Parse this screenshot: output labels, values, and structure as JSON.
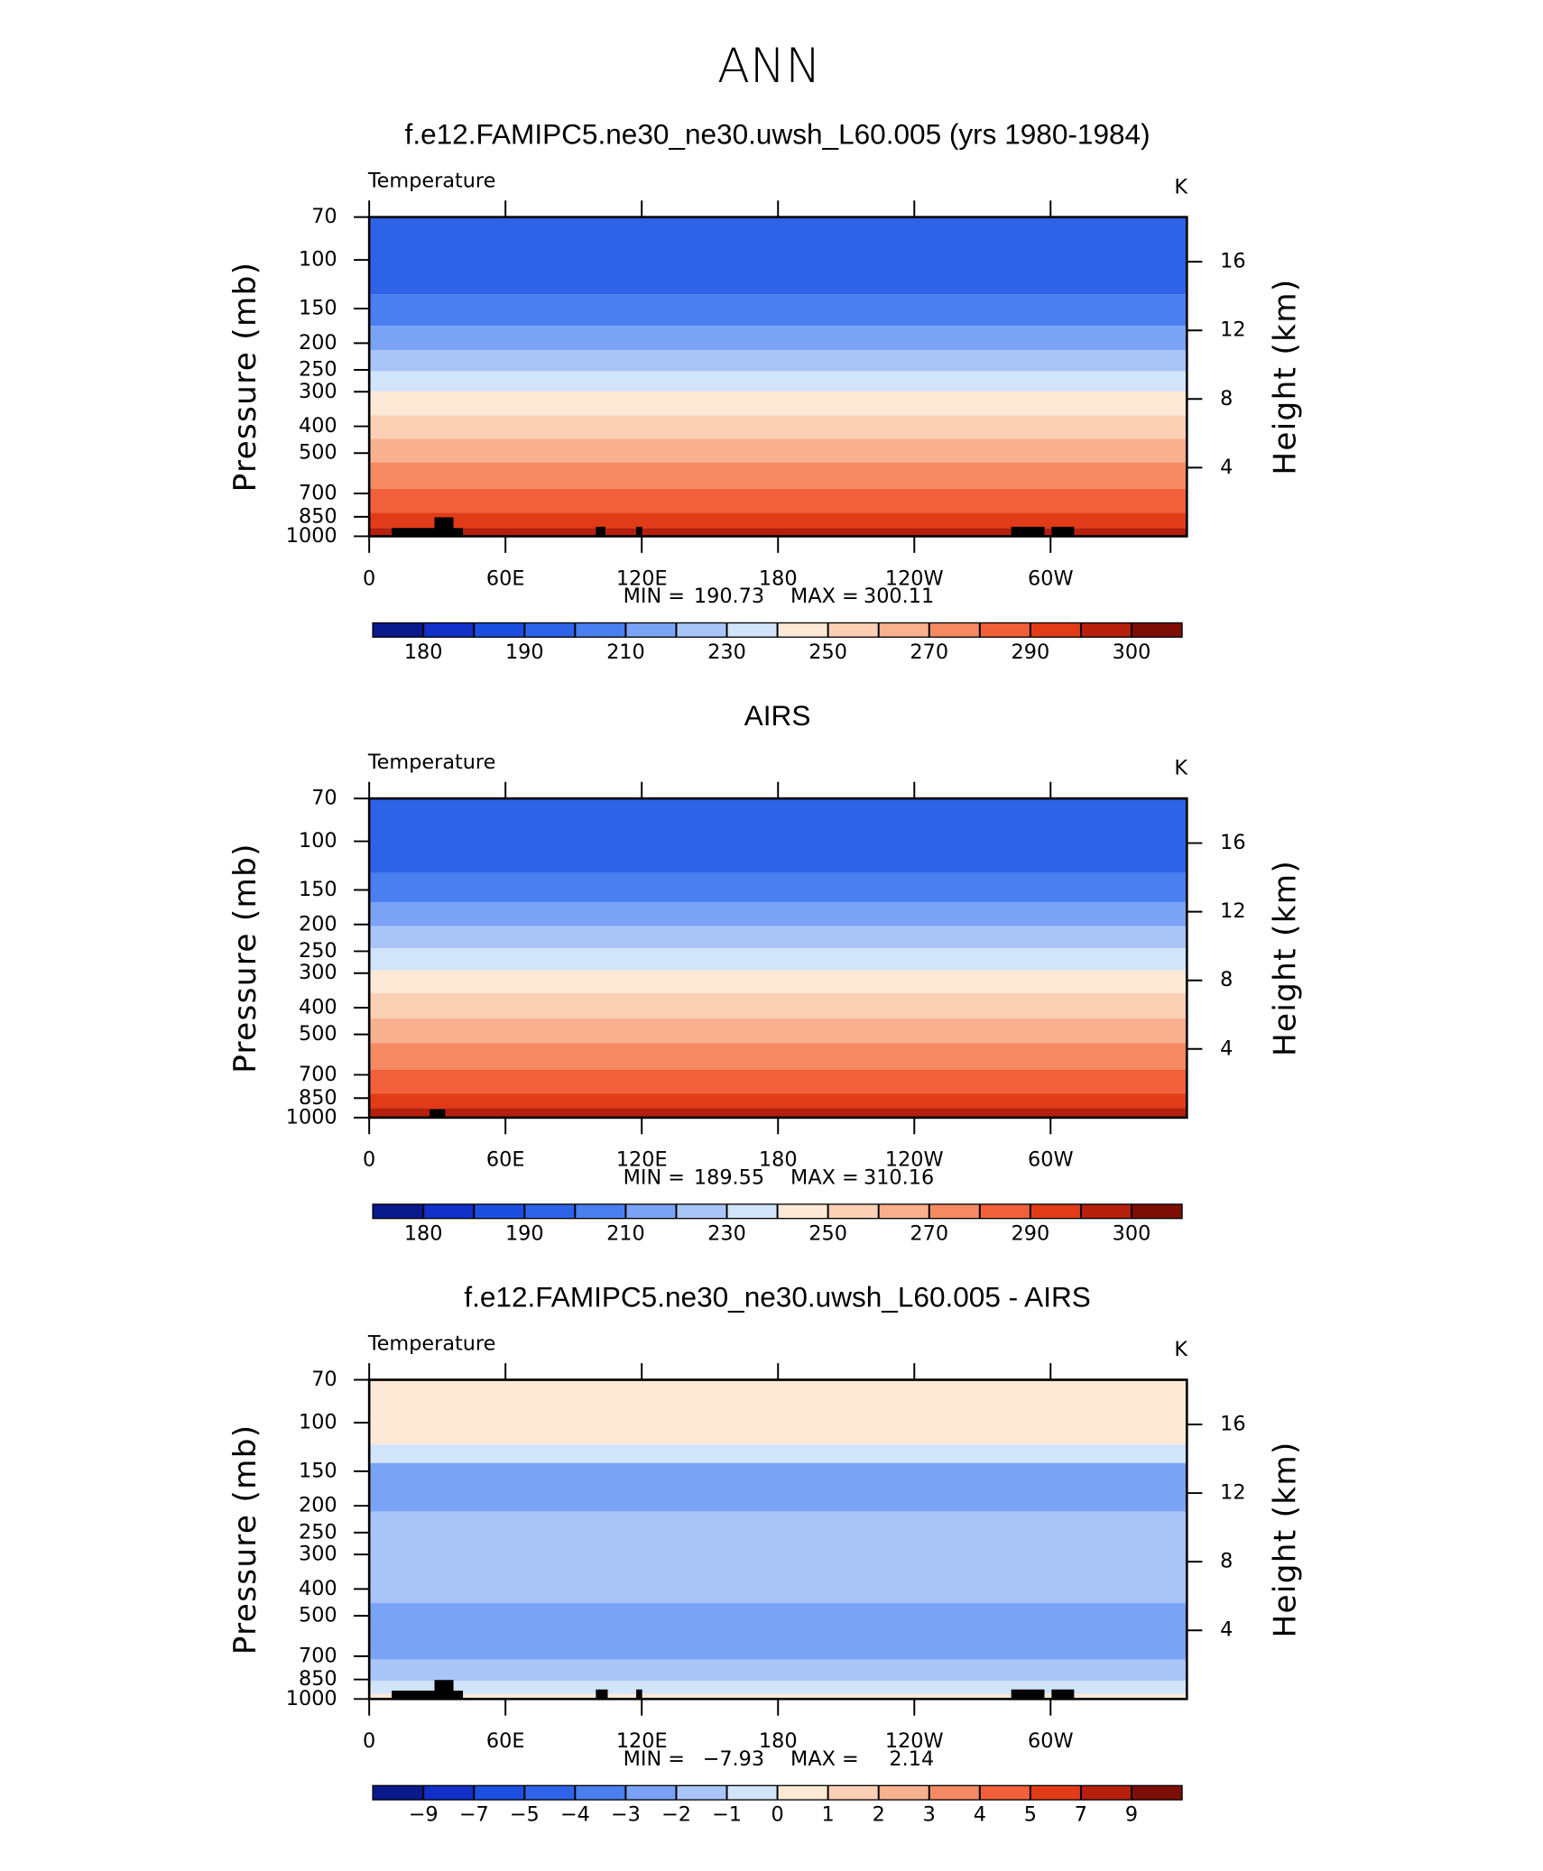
{
  "title": "ANN",
  "chart_data": [
    {
      "type": "contour",
      "title": "f.e12.FAMIPC5.ne30_ne30.uwsh_L60.005 (yrs 1980-1984)",
      "subtitle": "Temperature",
      "units": "K",
      "ylabel": "Pressure (mb)",
      "y2label": "Height (km)",
      "log_y": true,
      "xlim": [
        0,
        360
      ],
      "xticks": [
        0,
        {
          "value": 60,
          "label": "60E"
        },
        {
          "value": 120,
          "label": "120E"
        },
        180,
        {
          "value": 240,
          "label": "120W"
        },
        {
          "value": 300,
          "label": "60W"
        }
      ],
      "ylim": [
        1000,
        70
      ],
      "yticks": [
        70,
        100,
        150,
        200,
        250,
        300,
        400,
        500,
        700,
        850,
        1000
      ],
      "y2lim": [
        0,
        18.6
      ],
      "y2ticks": [
        4,
        8,
        12,
        16
      ],
      "levels": [
        180,
        185,
        190,
        200,
        210,
        220,
        230,
        240,
        250,
        260,
        270,
        280,
        290,
        295,
        300
      ],
      "colorbar_labels": [
        180,
        190,
        210,
        230,
        250,
        270,
        290,
        300
      ],
      "colors": [
        "#0a1a8c",
        "#1030c8",
        "#1c4fe0",
        "#2e63e8",
        "#4a7ff0",
        "#7aa3f5",
        "#a9c5f8",
        "#d2e4fa",
        "#fde9d6",
        "#fbd0b5",
        "#f8b08e",
        "#f58a62",
        "#f1603a",
        "#e23b17",
        "#b51f0c",
        "#7d0e06"
      ],
      "bands": [
        {
          "p_top": 70,
          "p_bottom": 133,
          "range": [
            190,
            200
          ]
        },
        {
          "p_top": 133,
          "p_bottom": 173,
          "range": [
            200,
            210
          ]
        },
        {
          "p_top": 173,
          "p_bottom": 212,
          "range": [
            210,
            220
          ]
        },
        {
          "p_top": 212,
          "p_bottom": 253,
          "range": [
            220,
            230
          ]
        },
        {
          "p_top": 253,
          "p_bottom": 299,
          "range": [
            230,
            240
          ]
        },
        {
          "p_top": 299,
          "p_bottom": 365,
          "range": [
            240,
            250
          ]
        },
        {
          "p_top": 365,
          "p_bottom": 444,
          "range": [
            250,
            260
          ]
        },
        {
          "p_top": 444,
          "p_bottom": 541,
          "range": [
            260,
            270
          ]
        },
        {
          "p_top": 541,
          "p_bottom": 673,
          "range": [
            270,
            280
          ]
        },
        {
          "p_top": 673,
          "p_bottom": 821,
          "range": [
            280,
            290
          ]
        },
        {
          "p_top": 821,
          "p_bottom": 933,
          "range": [
            290,
            295
          ]
        },
        {
          "p_top": 933,
          "p_bottom": 1000,
          "range": [
            295,
            300
          ]
        }
      ],
      "min_label": "MIN =",
      "min": 190.73,
      "max_label": "MAX =",
      "max": 300.11
    },
    {
      "type": "contour",
      "title": "AIRS",
      "subtitle": "Temperature",
      "units": "K",
      "ylabel": "Pressure (mb)",
      "y2label": "Height (km)",
      "log_y": true,
      "xlim": [
        0,
        360
      ],
      "xticks": [
        0,
        {
          "value": 60,
          "label": "60E"
        },
        {
          "value": 120,
          "label": "120E"
        },
        180,
        {
          "value": 240,
          "label": "120W"
        },
        {
          "value": 300,
          "label": "60W"
        }
      ],
      "ylim": [
        1000,
        70
      ],
      "yticks": [
        70,
        100,
        150,
        200,
        250,
        300,
        400,
        500,
        700,
        850,
        1000
      ],
      "y2lim": [
        0,
        18.6
      ],
      "y2ticks": [
        4,
        8,
        12,
        16
      ],
      "levels": [
        180,
        185,
        190,
        200,
        210,
        220,
        230,
        240,
        250,
        260,
        270,
        280,
        290,
        295,
        300
      ],
      "colorbar_labels": [
        180,
        190,
        210,
        230,
        250,
        270,
        290,
        300
      ],
      "colors": [
        "#0a1a8c",
        "#1030c8",
        "#1c4fe0",
        "#2e63e8",
        "#4a7ff0",
        "#7aa3f5",
        "#a9c5f8",
        "#d2e4fa",
        "#fde9d6",
        "#fbd0b5",
        "#f8b08e",
        "#f58a62",
        "#f1603a",
        "#e23b17",
        "#b51f0c",
        "#7d0e06"
      ],
      "bands": [
        {
          "p_top": 70,
          "p_bottom": 130,
          "range": [
            190,
            200
          ]
        },
        {
          "p_top": 130,
          "p_bottom": 166,
          "range": [
            200,
            210
          ]
        },
        {
          "p_top": 166,
          "p_bottom": 203,
          "range": [
            210,
            220
          ]
        },
        {
          "p_top": 203,
          "p_bottom": 244,
          "range": [
            220,
            230
          ]
        },
        {
          "p_top": 244,
          "p_bottom": 293,
          "range": [
            230,
            240
          ]
        },
        {
          "p_top": 293,
          "p_bottom": 354,
          "range": [
            240,
            250
          ]
        },
        {
          "p_top": 354,
          "p_bottom": 437,
          "range": [
            250,
            260
          ]
        },
        {
          "p_top": 437,
          "p_bottom": 537,
          "range": [
            260,
            270
          ]
        },
        {
          "p_top": 537,
          "p_bottom": 670,
          "range": [
            270,
            280
          ]
        },
        {
          "p_top": 670,
          "p_bottom": 818,
          "range": [
            280,
            290
          ]
        },
        {
          "p_top": 818,
          "p_bottom": 923,
          "range": [
            290,
            295
          ]
        },
        {
          "p_top": 923,
          "p_bottom": 1000,
          "range": [
            295,
            300
          ]
        }
      ],
      "min_label": "MIN =",
      "min": 189.55,
      "max_label": "MAX =",
      "max": 310.16
    },
    {
      "type": "contour",
      "title": "f.e12.FAMIPC5.ne30_ne30.uwsh_L60.005 - AIRS",
      "subtitle": "Temperature",
      "units": "K",
      "ylabel": "Pressure (mb)",
      "y2label": "Height (km)",
      "log_y": true,
      "xlim": [
        0,
        360
      ],
      "xticks": [
        0,
        {
          "value": 60,
          "label": "60E"
        },
        {
          "value": 120,
          "label": "120E"
        },
        180,
        {
          "value": 240,
          "label": "120W"
        },
        {
          "value": 300,
          "label": "60W"
        }
      ],
      "ylim": [
        1000,
        70
      ],
      "yticks": [
        70,
        100,
        150,
        200,
        250,
        300,
        400,
        500,
        700,
        850,
        1000
      ],
      "y2lim": [
        0,
        18.6
      ],
      "y2ticks": [
        4,
        8,
        12,
        16
      ],
      "levels": [
        -9,
        -7,
        -5,
        -4,
        -3,
        -2,
        -1,
        0,
        1,
        2,
        3,
        4,
        5,
        7,
        9
      ],
      "colorbar_labels": [
        {
          "value": -9,
          "label": "−9"
        },
        {
          "value": -7,
          "label": "−7"
        },
        {
          "value": -5,
          "label": "−5"
        },
        {
          "value": -4,
          "label": "−4"
        },
        {
          "value": -3,
          "label": "−3"
        },
        {
          "value": -2,
          "label": "−2"
        },
        {
          "value": -1,
          "label": "−1"
        },
        0,
        1,
        2,
        3,
        4,
        5,
        7,
        9
      ],
      "colors": [
        "#0a1a8c",
        "#1030c8",
        "#1c4fe0",
        "#2e63e8",
        "#4a7ff0",
        "#7aa3f5",
        "#a9c5f8",
        "#d2e4fa",
        "#fde9d6",
        "#fbd0b5",
        "#f8b08e",
        "#f58a62",
        "#f1603a",
        "#e23b17",
        "#b51f0c",
        "#7d0e06"
      ],
      "bands": [
        {
          "p_top": 70,
          "p_bottom": 120,
          "range": [
            0,
            1
          ]
        },
        {
          "p_top": 120,
          "p_bottom": 140,
          "range": [
            -1,
            0
          ]
        },
        {
          "p_top": 140,
          "p_bottom": 210,
          "range": [
            -3,
            -2
          ]
        },
        {
          "p_top": 210,
          "p_bottom": 450,
          "range": [
            -2,
            -1
          ]
        },
        {
          "p_top": 450,
          "p_bottom": 720,
          "range": [
            -3,
            -2
          ]
        },
        {
          "p_top": 720,
          "p_bottom": 860,
          "range": [
            -2,
            -1
          ]
        },
        {
          "p_top": 860,
          "p_bottom": 960,
          "range": [
            -1,
            0
          ]
        },
        {
          "p_top": 960,
          "p_bottom": 1000,
          "range": [
            0,
            1
          ]
        }
      ],
      "min_label": "MIN =",
      "min": {
        "value": -7.93,
        "label": "−7.93"
      },
      "max_label": "MAX =",
      "max": 2.14
    }
  ]
}
